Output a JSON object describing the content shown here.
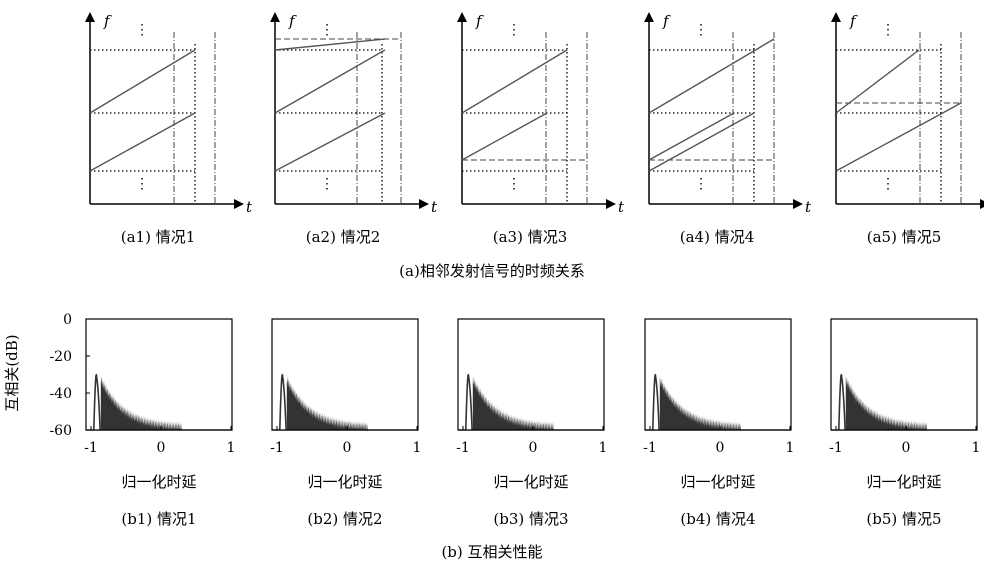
{
  "top_row": {
    "axis_f": "f",
    "axis_t": "t",
    "dots": "⋮",
    "panels": [
      {
        "caption": "(a1) 情况1"
      },
      {
        "caption": "(a2) 情况2"
      },
      {
        "caption": "(a3) 情况3"
      },
      {
        "caption": "(a4) 情况4"
      },
      {
        "caption": "(a5) 情况5"
      }
    ],
    "caption": "(a)相邻发射信号的时频关系"
  },
  "bottom_row": {
    "ylabel": "互相关(dB)",
    "xlabel": "归一化时延",
    "panels": [
      {
        "caption": "(b1) 情况1"
      },
      {
        "caption": "(b2) 情况2"
      },
      {
        "caption": "(b3) 情况3"
      },
      {
        "caption": "(b4) 情况4"
      },
      {
        "caption": "(b5) 情况5"
      }
    ],
    "caption": "(b) 互相关性能"
  },
  "chart_data": {
    "type": "area",
    "xlim": [
      -1,
      1
    ],
    "ylim": [
      -60,
      0
    ],
    "xticks": [
      "-1",
      "0",
      "1"
    ],
    "yticks": [
      "0",
      "-20",
      "-40",
      "-60"
    ]
  },
  "colors": {
    "line": "#555555",
    "fill": "#333333",
    "axis": "#000000"
  }
}
